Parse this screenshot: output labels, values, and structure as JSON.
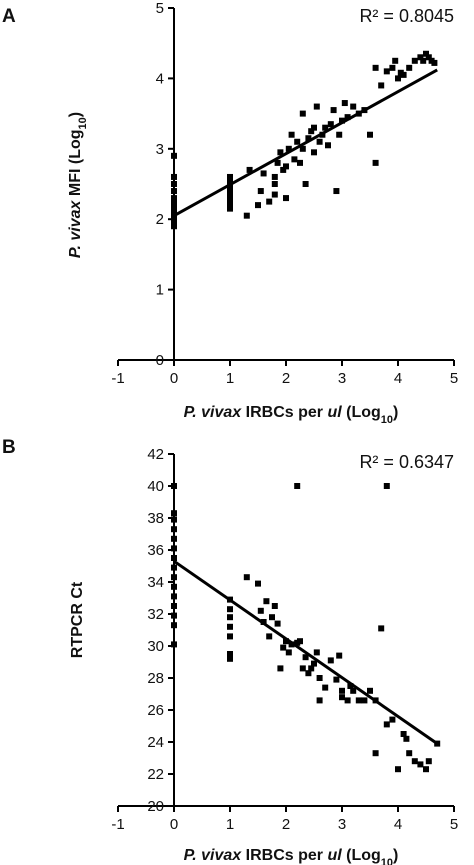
{
  "chart_data": [
    {
      "panel": "A",
      "type": "scatter",
      "annotation": "R² = 0.8045",
      "xlabel": {
        "italic": "P. vivax",
        "mid": " IRBCs per ",
        "italic2": "ul",
        "end": " (Log",
        "sub": "10",
        "close": ")"
      },
      "ylabel": {
        "italic": "P. vivax",
        "mid": " MFI (Log",
        "sub": "10",
        "close": ")"
      },
      "xlim": [
        -1,
        5
      ],
      "ylim": [
        0,
        5
      ],
      "xticks": [
        "-1",
        "0",
        "1",
        "2",
        "3",
        "4",
        "5"
      ],
      "yticks": [
        "0",
        "1",
        "2",
        "3",
        "4",
        "5"
      ],
      "fit": {
        "x": [
          0,
          4.7
        ],
        "y": [
          2.05,
          4.12
        ]
      },
      "points": [
        [
          0,
          1.9
        ],
        [
          0,
          1.95
        ],
        [
          0,
          2.0
        ],
        [
          0,
          2.05
        ],
        [
          0,
          2.1
        ],
        [
          0,
          2.15
        ],
        [
          0,
          2.2
        ],
        [
          0,
          2.25
        ],
        [
          0,
          2.3
        ],
        [
          0,
          2.4
        ],
        [
          0,
          2.5
        ],
        [
          0,
          2.6
        ],
        [
          0,
          2.9
        ],
        [
          1,
          2.15
        ],
        [
          1,
          2.2
        ],
        [
          1,
          2.25
        ],
        [
          1,
          2.3
        ],
        [
          1,
          2.35
        ],
        [
          1,
          2.4
        ],
        [
          1,
          2.45
        ],
        [
          1,
          2.5
        ],
        [
          1,
          2.55
        ],
        [
          1,
          2.6
        ],
        [
          1.3,
          2.05
        ],
        [
          1.35,
          2.7
        ],
        [
          1.5,
          2.2
        ],
        [
          1.55,
          2.4
        ],
        [
          1.6,
          2.65
        ],
        [
          1.7,
          2.25
        ],
        [
          1.8,
          2.35
        ],
        [
          1.8,
          2.5
        ],
        [
          1.8,
          2.6
        ],
        [
          1.85,
          2.8
        ],
        [
          1.9,
          2.95
        ],
        [
          1.95,
          2.7
        ],
        [
          2.0,
          2.3
        ],
        [
          2.0,
          2.75
        ],
        [
          2.05,
          3.0
        ],
        [
          2.1,
          3.2
        ],
        [
          2.15,
          2.85
        ],
        [
          2.2,
          3.1
        ],
        [
          2.25,
          2.8
        ],
        [
          2.3,
          3.0
        ],
        [
          2.3,
          3.5
        ],
        [
          2.35,
          2.5
        ],
        [
          2.4,
          3.15
        ],
        [
          2.45,
          3.25
        ],
        [
          2.5,
          2.95
        ],
        [
          2.5,
          3.3
        ],
        [
          2.55,
          3.6
        ],
        [
          2.6,
          3.1
        ],
        [
          2.65,
          3.2
        ],
        [
          2.7,
          3.3
        ],
        [
          2.75,
          3.05
        ],
        [
          2.8,
          3.35
        ],
        [
          2.85,
          3.55
        ],
        [
          2.9,
          2.4
        ],
        [
          2.95,
          3.2
        ],
        [
          3.0,
          3.4
        ],
        [
          3.05,
          3.65
        ],
        [
          3.1,
          3.45
        ],
        [
          3.2,
          3.6
        ],
        [
          3.3,
          3.5
        ],
        [
          3.4,
          3.55
        ],
        [
          3.5,
          3.2
        ],
        [
          3.6,
          2.8
        ],
        [
          3.6,
          4.15
        ],
        [
          3.7,
          3.9
        ],
        [
          3.8,
          4.1
        ],
        [
          3.9,
          4.15
        ],
        [
          4.0,
          4.0
        ],
        [
          4.1,
          4.05
        ],
        [
          4.2,
          4.15
        ],
        [
          4.3,
          4.25
        ],
        [
          4.4,
          4.3
        ],
        [
          4.45,
          4.25
        ],
        [
          4.5,
          4.35
        ],
        [
          4.55,
          4.3
        ],
        [
          4.6,
          4.25
        ],
        [
          4.65,
          4.22
        ],
        [
          3.95,
          4.25
        ],
        [
          4.05,
          4.08
        ]
      ]
    },
    {
      "panel": "B",
      "type": "scatter",
      "annotation": "R² = 0.6347",
      "xlabel": {
        "italic": "P. vivax",
        "mid": " IRBCs per ",
        "italic2": "ul",
        "end": " (Log",
        "sub": "10",
        "close": ")"
      },
      "ylabel": {
        "text": "RTPCR Ct"
      },
      "xlim": [
        -1,
        5
      ],
      "ylim": [
        20,
        42
      ],
      "xticks": [
        "-1",
        "0",
        "1",
        "2",
        "3",
        "4",
        "5"
      ],
      "yticks": [
        "20",
        "22",
        "24",
        "26",
        "28",
        "30",
        "32",
        "34",
        "36",
        "38",
        "40",
        "42"
      ],
      "fit": {
        "x": [
          0,
          4.7
        ],
        "y": [
          35.3,
          23.9
        ]
      },
      "points": [
        [
          0,
          30.1
        ],
        [
          0,
          31.3
        ],
        [
          0,
          31.9
        ],
        [
          0,
          32.5
        ],
        [
          0,
          33.1
        ],
        [
          0,
          33.7
        ],
        [
          0,
          34.3
        ],
        [
          0,
          34.9
        ],
        [
          0,
          35.5
        ],
        [
          0,
          36.1
        ],
        [
          0,
          36.7
        ],
        [
          0,
          37.3
        ],
        [
          0,
          37.9
        ],
        [
          0,
          38.3
        ],
        [
          0,
          40.0
        ],
        [
          1,
          29.2
        ],
        [
          1,
          29.5
        ],
        [
          1,
          30.6
        ],
        [
          1,
          31.2
        ],
        [
          1,
          31.8
        ],
        [
          1,
          32.3
        ],
        [
          1,
          32.9
        ],
        [
          1.3,
          34.3
        ],
        [
          1.5,
          33.9
        ],
        [
          1.55,
          32.2
        ],
        [
          1.6,
          31.5
        ],
        [
          1.65,
          32.8
        ],
        [
          1.7,
          30.6
        ],
        [
          1.75,
          31.8
        ],
        [
          1.8,
          32.5
        ],
        [
          1.85,
          31.4
        ],
        [
          1.9,
          28.6
        ],
        [
          1.95,
          29.9
        ],
        [
          2.0,
          30.3
        ],
        [
          2.05,
          29.6
        ],
        [
          2.1,
          30.1
        ],
        [
          2.2,
          30.2
        ],
        [
          2.2,
          40.0
        ],
        [
          2.25,
          30.3
        ],
        [
          2.3,
          28.6
        ],
        [
          2.35,
          29.3
        ],
        [
          2.4,
          28.3
        ],
        [
          2.45,
          28.6
        ],
        [
          2.5,
          28.9
        ],
        [
          2.55,
          29.6
        ],
        [
          2.6,
          28.0
        ],
        [
          2.6,
          26.6
        ],
        [
          2.7,
          27.4
        ],
        [
          2.8,
          29.1
        ],
        [
          2.9,
          27.9
        ],
        [
          2.95,
          29.4
        ],
        [
          3.0,
          26.8
        ],
        [
          3.0,
          27.2
        ],
        [
          3.1,
          26.6
        ],
        [
          3.15,
          27.5
        ],
        [
          3.2,
          27.2
        ],
        [
          3.3,
          26.6
        ],
        [
          3.4,
          26.6
        ],
        [
          3.5,
          27.2
        ],
        [
          3.6,
          26.6
        ],
        [
          3.6,
          23.3
        ],
        [
          3.7,
          31.1
        ],
        [
          3.8,
          40.0
        ],
        [
          3.8,
          25.1
        ],
        [
          3.9,
          25.4
        ],
        [
          4.0,
          22.3
        ],
        [
          4.1,
          24.5
        ],
        [
          4.15,
          24.2
        ],
        [
          4.2,
          23.3
        ],
        [
          4.3,
          22.8
        ],
        [
          4.4,
          22.6
        ],
        [
          4.5,
          22.3
        ],
        [
          4.55,
          22.8
        ],
        [
          4.7,
          23.9
        ]
      ]
    }
  ]
}
